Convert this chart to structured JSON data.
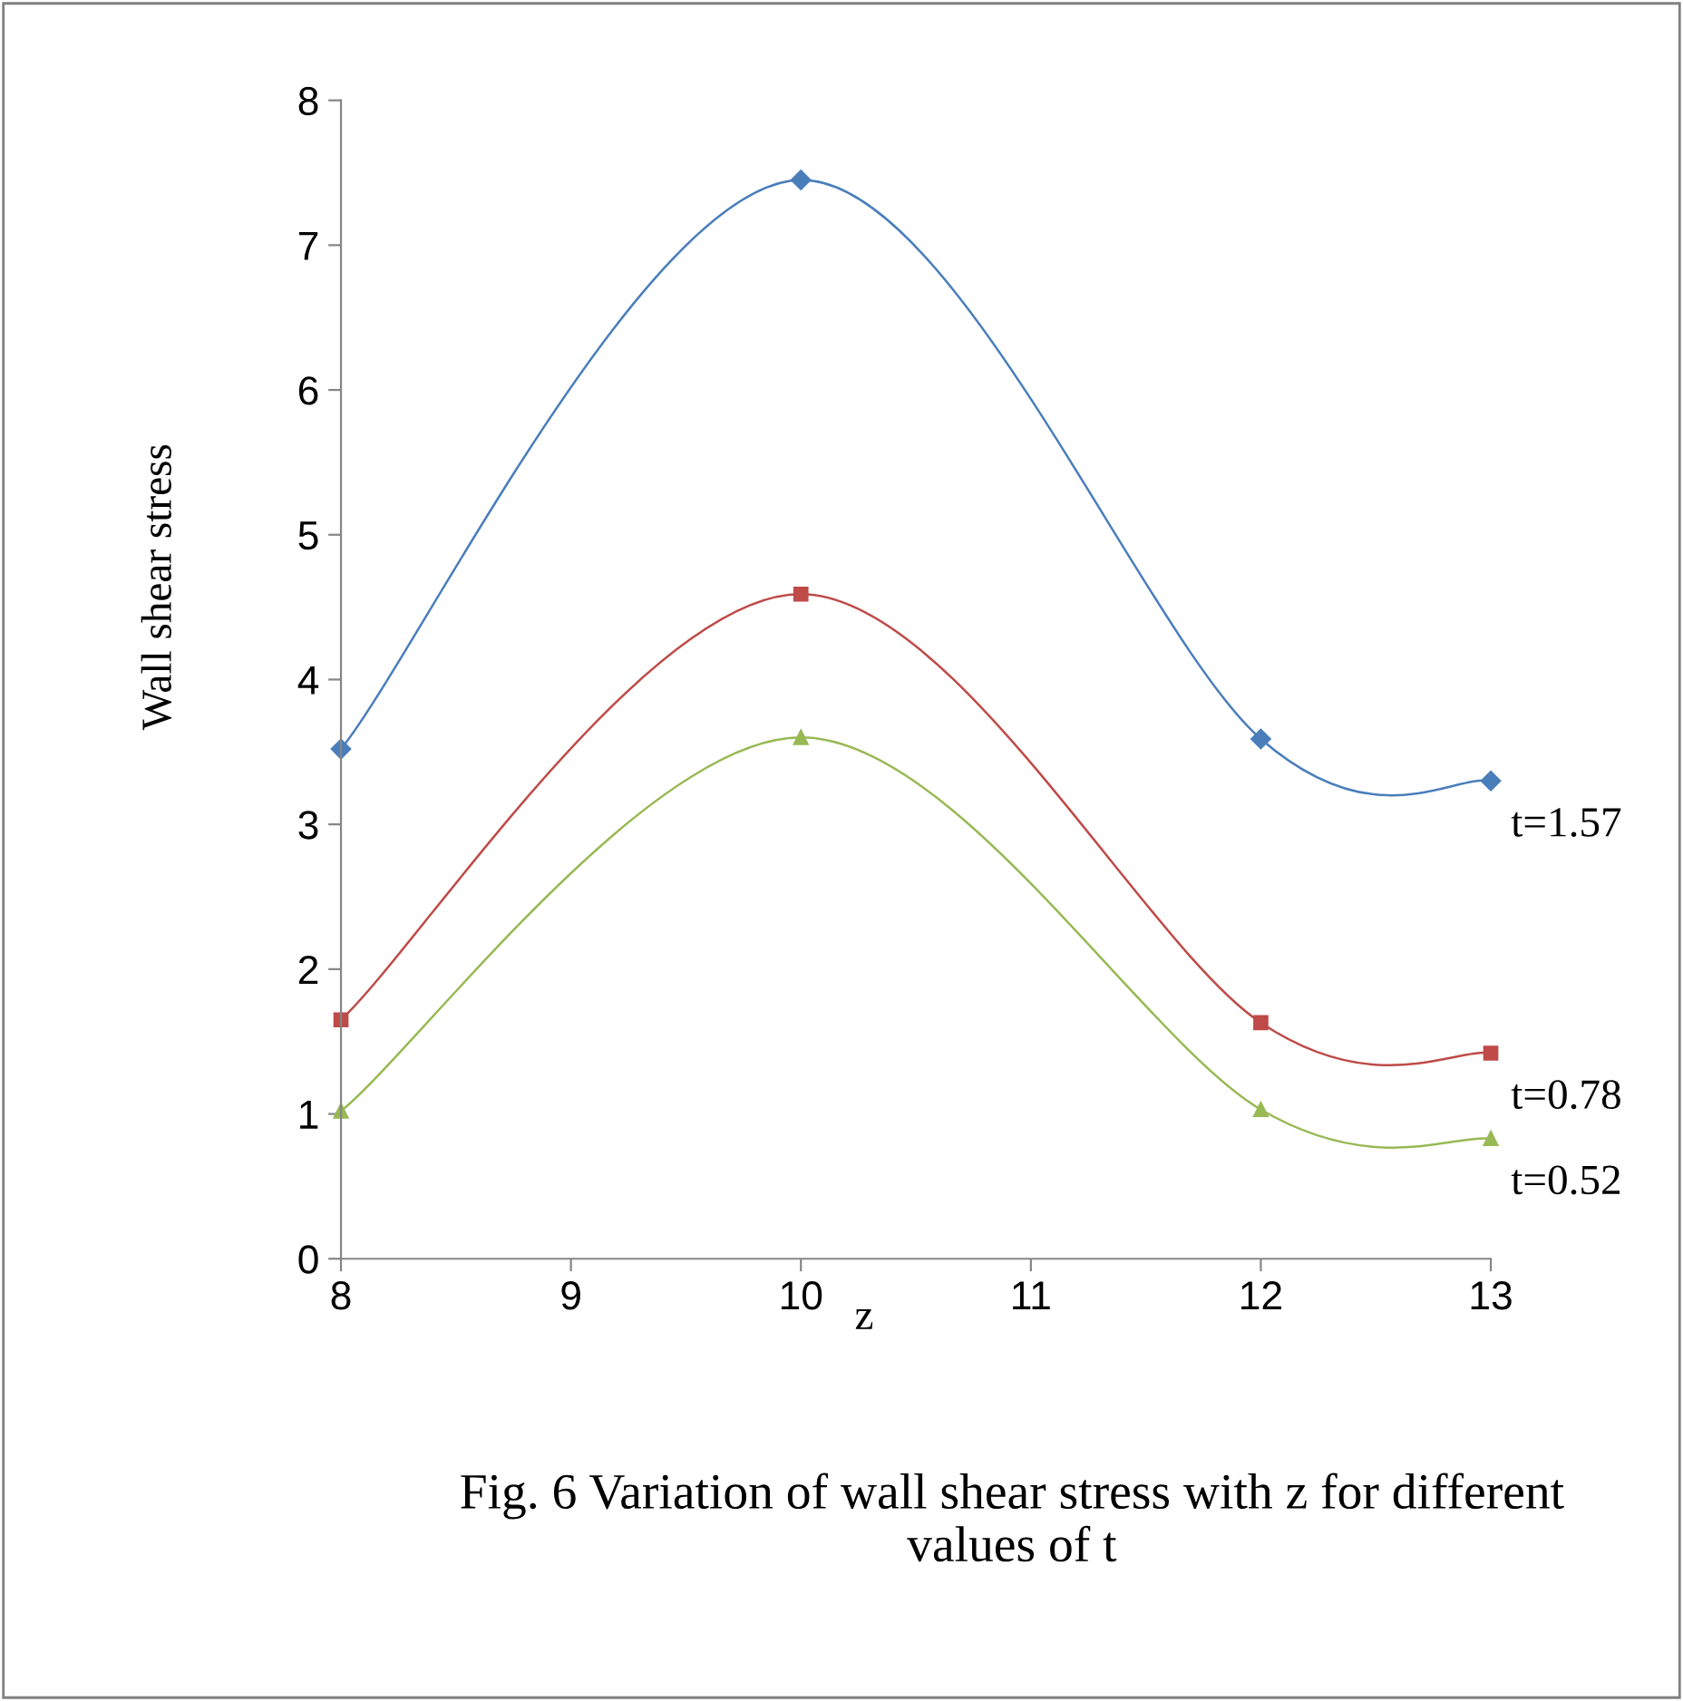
{
  "chart_data": {
    "type": "line",
    "title": "Fig. 6 Variation of wall shear stress with z for different values of t",
    "xlabel": "z",
    "ylabel": "Wall shear stress",
    "x": [
      8,
      10,
      12,
      13
    ],
    "series": [
      {
        "name": "t=1.57",
        "color": "#4a7ebb",
        "marker": "diamond",
        "values": [
          3.52,
          7.45,
          3.59,
          3.3
        ]
      },
      {
        "name": "t=0.78",
        "color": "#be4b48",
        "marker": "square",
        "values": [
          1.65,
          4.59,
          1.63,
          1.42
        ]
      },
      {
        "name": "t=0.52",
        "color": "#98b954",
        "marker": "triangle",
        "values": [
          1.02,
          3.6,
          1.03,
          0.83
        ]
      }
    ],
    "xlim": [
      8,
      13
    ],
    "xticks": [
      8,
      9,
      10,
      11,
      12,
      13
    ],
    "ylim": [
      0,
      8
    ],
    "yticks": [
      0,
      1,
      2,
      3,
      4,
      5,
      6,
      7,
      8
    ],
    "grid": false,
    "legend": "right"
  }
}
